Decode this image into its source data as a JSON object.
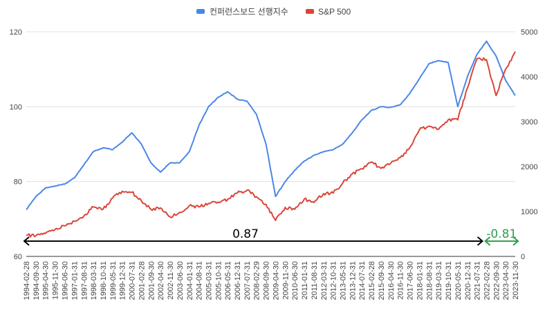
{
  "chart_data": {
    "type": "line",
    "title": "",
    "legend": {
      "position": "top-center",
      "entries": [
        {
          "name": "컨퍼런스보드 선행지수",
          "color": "#4a86e8"
        },
        {
          "name": "S&P 500",
          "color": "#db4437"
        }
      ]
    },
    "left_axis": {
      "min": 60,
      "max": 120,
      "ticks": [
        60,
        80,
        100,
        120
      ]
    },
    "right_axis": {
      "min": 0,
      "max": 5000,
      "ticks": [
        0,
        1000,
        2000,
        3000,
        4000,
        5000
      ]
    },
    "x_start": "1994-02-28",
    "x_end": "2023-11-30",
    "x_tick_labels": [
      "1994-02-28",
      "1994-09-30",
      "1995-04-30",
      "1995-11-30",
      "1996-06-30",
      "1997-01-31",
      "1997-08-31",
      "1998-03-31",
      "1998-10-31",
      "1999-05-31",
      "1999-12-31",
      "2000-07-31",
      "2001-02-28",
      "2001-09-30",
      "2002-04-30",
      "2002-11-30",
      "2003-06-30",
      "2004-01-31",
      "2004-08-31",
      "2005-03-31",
      "2005-10-31",
      "2006-05-31",
      "2006-12-31",
      "2007-07-31",
      "2008-02-29",
      "2008-09-30",
      "2009-04-30",
      "2009-11-30",
      "2010-06-30",
      "2011-01-31",
      "2011-08-31",
      "2012-03-31",
      "2012-10-31",
      "2013-05-31",
      "2013-12-31",
      "2014-07-31",
      "2015-02-28",
      "2015-09-30",
      "2016-04-30",
      "2016-11-30",
      "2017-06-30",
      "2018-01-31",
      "2018-08-31",
      "2019-03-31",
      "2019-10-31",
      "2020-05-31",
      "2020-12-31",
      "2021-07-31",
      "2022-02-28",
      "2022-09-30",
      "2023-04-30",
      "2023-11-30"
    ],
    "grid": true,
    "series": [
      {
        "name": "컨퍼런스보드 선행지수",
        "axis": "left",
        "color": "#4a86e8",
        "points": [
          [
            "1994-02-28",
            72.5
          ],
          [
            "1994-09-30",
            76
          ],
          [
            "1995-04-30",
            78.3
          ],
          [
            "1995-11-30",
            78.8
          ],
          [
            "1996-06-30",
            79.3
          ],
          [
            "1997-01-31",
            81
          ],
          [
            "1997-08-31",
            84.5
          ],
          [
            "1998-03-31",
            88
          ],
          [
            "1998-10-31",
            89
          ],
          [
            "1999-05-31",
            88.5
          ],
          [
            "1999-12-31",
            90.5
          ],
          [
            "2000-07-31",
            93
          ],
          [
            "2001-02-28",
            90
          ],
          [
            "2001-09-30",
            85
          ],
          [
            "2002-04-30",
            82.5
          ],
          [
            "2002-11-30",
            85
          ],
          [
            "2003-06-30",
            85
          ],
          [
            "2004-01-31",
            88
          ],
          [
            "2004-08-31",
            95
          ],
          [
            "2005-03-31",
            100
          ],
          [
            "2005-10-31",
            102.5
          ],
          [
            "2006-05-31",
            104
          ],
          [
            "2006-12-31",
            102
          ],
          [
            "2007-07-31",
            101.5
          ],
          [
            "2008-02-29",
            98
          ],
          [
            "2008-09-30",
            90
          ],
          [
            "2009-04-30",
            76
          ],
          [
            "2009-11-30",
            80
          ],
          [
            "2010-06-30",
            83
          ],
          [
            "2011-01-31",
            85.5
          ],
          [
            "2011-08-31",
            87
          ],
          [
            "2012-03-31",
            88
          ],
          [
            "2012-10-31",
            88.5
          ],
          [
            "2013-05-31",
            90
          ],
          [
            "2013-12-31",
            93
          ],
          [
            "2014-07-31",
            96.5
          ],
          [
            "2015-02-28",
            99
          ],
          [
            "2015-09-30",
            100
          ],
          [
            "2016-04-30",
            99.8
          ],
          [
            "2016-11-30",
            100.5
          ],
          [
            "2017-06-30",
            103.5
          ],
          [
            "2018-01-31",
            107.5
          ],
          [
            "2018-08-31",
            111.5
          ],
          [
            "2019-03-31",
            112.3
          ],
          [
            "2019-10-31",
            111.8
          ],
          [
            "2020-05-31",
            100
          ],
          [
            "2020-12-31",
            108
          ],
          [
            "2021-07-31",
            114
          ],
          [
            "2022-02-28",
            117.5
          ],
          [
            "2022-09-30",
            113.5
          ],
          [
            "2023-04-30",
            107
          ],
          [
            "2023-11-30",
            103
          ]
        ]
      },
      {
        "name": "S&P 500",
        "axis": "right",
        "color": "#db4437",
        "points": [
          [
            "1994-02-28",
            470
          ],
          [
            "1994-09-30",
            460
          ],
          [
            "1995-04-30",
            510
          ],
          [
            "1995-11-30",
            600
          ],
          [
            "1996-06-30",
            680
          ],
          [
            "1997-01-31",
            780
          ],
          [
            "1997-08-31",
            900
          ],
          [
            "1998-03-31",
            1100
          ],
          [
            "1998-10-31",
            1050
          ],
          [
            "1999-05-31",
            1300
          ],
          [
            "1999-12-31",
            1450
          ],
          [
            "2000-07-31",
            1430
          ],
          [
            "2001-02-28",
            1240
          ],
          [
            "2001-09-30",
            1050
          ],
          [
            "2002-04-30",
            1080
          ],
          [
            "2002-11-30",
            880
          ],
          [
            "2003-06-30",
            980
          ],
          [
            "2004-01-31",
            1130
          ],
          [
            "2004-08-31",
            1100
          ],
          [
            "2005-03-31",
            1180
          ],
          [
            "2005-10-31",
            1210
          ],
          [
            "2006-05-31",
            1270
          ],
          [
            "2006-12-31",
            1410
          ],
          [
            "2007-07-31",
            1470
          ],
          [
            "2008-02-29",
            1330
          ],
          [
            "2008-09-30",
            1160
          ],
          [
            "2009-04-30",
            800
          ],
          [
            "2009-11-30",
            1090
          ],
          [
            "2010-06-30",
            1050
          ],
          [
            "2011-01-31",
            1280
          ],
          [
            "2011-08-31",
            1200
          ],
          [
            "2012-03-31",
            1400
          ],
          [
            "2012-10-31",
            1410
          ],
          [
            "2013-05-31",
            1630
          ],
          [
            "2013-12-31",
            1840
          ],
          [
            "2014-07-31",
            1950
          ],
          [
            "2015-02-28",
            2100
          ],
          [
            "2015-09-30",
            1960
          ],
          [
            "2016-04-30",
            2070
          ],
          [
            "2016-11-30",
            2200
          ],
          [
            "2017-06-30",
            2420
          ],
          [
            "2018-01-31",
            2820
          ],
          [
            "2018-08-31",
            2900
          ],
          [
            "2019-03-31",
            2830
          ],
          [
            "2019-10-31",
            3040
          ],
          [
            "2020-05-31",
            3040
          ],
          [
            "2020-12-31",
            3750
          ],
          [
            "2021-07-31",
            4400
          ],
          [
            "2022-02-28",
            4380
          ],
          [
            "2022-09-30",
            3580
          ],
          [
            "2023-04-30",
            4170
          ],
          [
            "2023-11-30",
            4560
          ]
        ]
      }
    ],
    "annotations": [
      {
        "text": "0.87",
        "color": "#000000",
        "from": "1994-02-28",
        "to": "2021-12-31",
        "axis_value": 62.8
      },
      {
        "text": "-0.81",
        "color": "#2e9e4f",
        "from": "2021-12-31",
        "to": "2023-11-30",
        "axis_value": 62.8
      }
    ]
  }
}
